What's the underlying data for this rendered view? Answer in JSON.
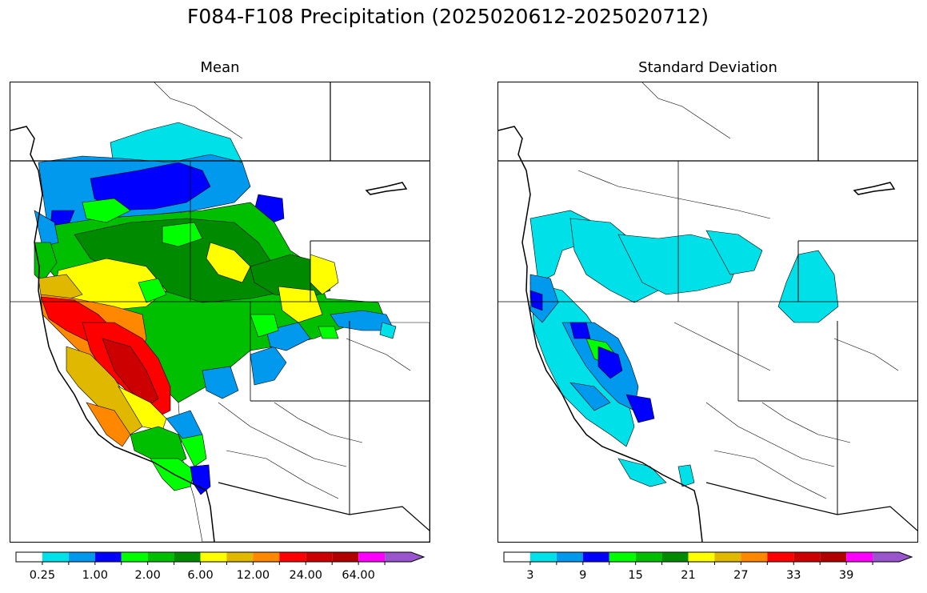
{
  "title": "F084-F108 Precipitation (2025020612-2025020712)",
  "panels": [
    {
      "title": "Mean",
      "colorbar": {
        "colors": [
          "#ffffff",
          "#00e0e8",
          "#0099ee",
          "#0000ff",
          "#00ff00",
          "#00be00",
          "#008a00",
          "#ffff00",
          "#e0b800",
          "#ff8800",
          "#ff0000",
          "#cc0000",
          "#b00000",
          "#ff00ff",
          "#9955cc"
        ],
        "extend": "max",
        "labels": [
          "0.25",
          "1.00",
          "2.00",
          "6.00",
          "12.00",
          "24.00",
          "64.00"
        ]
      }
    },
    {
      "title": "Standard Deviation",
      "colorbar": {
        "colors": [
          "#ffffff",
          "#00e0e8",
          "#0099ee",
          "#0000ff",
          "#00ff00",
          "#00be00",
          "#008a00",
          "#ffff00",
          "#e0b800",
          "#ff8800",
          "#ff0000",
          "#cc0000",
          "#b00000",
          "#ff00ff",
          "#9955cc"
        ],
        "extend": "max",
        "labels": [
          "3",
          "9",
          "15",
          "21",
          "27",
          "33",
          "39"
        ]
      }
    }
  ]
}
